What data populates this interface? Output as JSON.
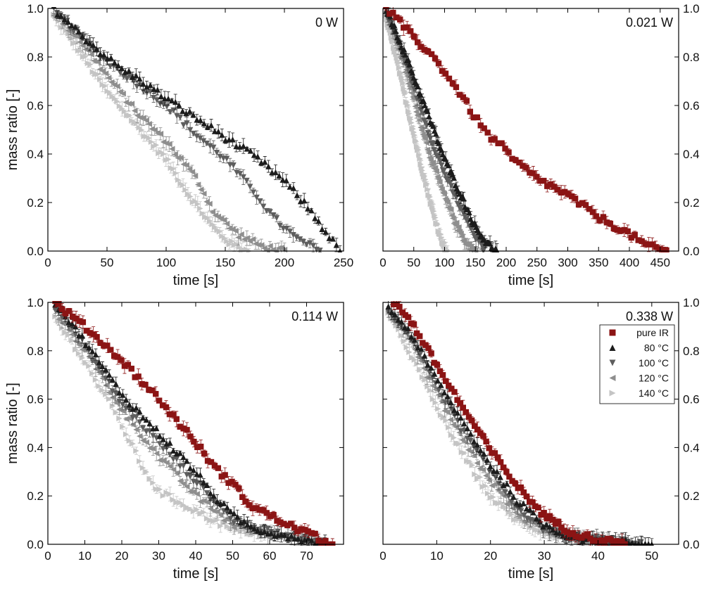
{
  "figure": {
    "colors": {
      "pure IR": "#8b1414",
      "80 °C": "#1c1c1c",
      "100 °C": "#5e5e5e",
      "120 °C": "#8e8e8e",
      "140 °C": "#c4c4c4"
    },
    "legend": [
      {
        "label": "pure IR",
        "marker": "square",
        "color": "#8b1414"
      },
      {
        "label": "80 °C",
        "marker": "triangle-up",
        "color": "#1c1c1c"
      },
      {
        "label": "100 °C",
        "marker": "triangle-down",
        "color": "#5e5e5e"
      },
      {
        "label": "120 °C",
        "marker": "triangle-left",
        "color": "#8e8e8e"
      },
      {
        "label": "140 °C",
        "marker": "triangle-right",
        "color": "#c4c4c4"
      }
    ],
    "legend_location": "top-right of bottom-right panel"
  },
  "chart_data": [
    {
      "type": "scatter",
      "panel_label": "0 W",
      "xlabel": "time [s]",
      "ylabel": "mass ratio [-]",
      "xlim": [
        0,
        250
      ],
      "ylim": [
        0,
        1
      ],
      "xticks": [
        0,
        50,
        100,
        150,
        200,
        250
      ],
      "yticks": [
        0.0,
        0.2,
        0.4,
        0.6,
        0.8,
        1.0
      ],
      "x_tick_labels": [
        "0",
        "50",
        "100",
        "150",
        "200",
        "250"
      ],
      "y_tick_labels": [
        "0.0",
        "0.2",
        "0.4",
        "0.6",
        "0.8",
        "1.0"
      ],
      "ytick_side": "left",
      "series": [
        {
          "name": "80 °C",
          "points": [
            [
              5,
              1.0
            ],
            [
              20,
              0.93
            ],
            [
              40,
              0.84
            ],
            [
              60,
              0.76
            ],
            [
              80,
              0.7
            ],
            [
              100,
              0.63
            ],
            [
              125,
              0.55
            ],
            [
              150,
              0.47
            ],
            [
              175,
              0.39
            ],
            [
              200,
              0.29
            ],
            [
              220,
              0.18
            ],
            [
              235,
              0.08
            ],
            [
              247,
              0.0
            ]
          ]
        },
        {
          "name": "100 °C",
          "points": [
            [
              5,
              0.99
            ],
            [
              25,
              0.9
            ],
            [
              50,
              0.78
            ],
            [
              75,
              0.69
            ],
            [
              100,
              0.6
            ],
            [
              125,
              0.48
            ],
            [
              150,
              0.38
            ],
            [
              175,
              0.24
            ],
            [
              190,
              0.14
            ],
            [
              210,
              0.05
            ],
            [
              230,
              0.0
            ]
          ]
        },
        {
          "name": "120 °C",
          "points": [
            [
              5,
              0.98
            ],
            [
              25,
              0.88
            ],
            [
              50,
              0.72
            ],
            [
              75,
              0.57
            ],
            [
              100,
              0.45
            ],
            [
              125,
              0.3
            ],
            [
              140,
              0.16
            ],
            [
              160,
              0.07
            ],
            [
              180,
              0.02
            ],
            [
              200,
              0.0
            ]
          ]
        },
        {
          "name": "140 °C",
          "points": [
            [
              5,
              0.97
            ],
            [
              25,
              0.84
            ],
            [
              50,
              0.66
            ],
            [
              75,
              0.52
            ],
            [
              100,
              0.38
            ],
            [
              120,
              0.23
            ],
            [
              140,
              0.1
            ],
            [
              155,
              0.03
            ],
            [
              170,
              0.0
            ]
          ]
        }
      ]
    },
    {
      "type": "scatter",
      "panel_label": "0.021 W",
      "xlabel": "time [s]",
      "ylabel": "",
      "xlim": [
        0,
        480
      ],
      "ylim": [
        0,
        1
      ],
      "xticks": [
        0,
        50,
        100,
        150,
        200,
        250,
        300,
        350,
        400,
        450
      ],
      "yticks": [
        0.0,
        0.2,
        0.4,
        0.6,
        0.8,
        1.0
      ],
      "x_tick_labels": [
        "0",
        "50",
        "100",
        "150",
        "200",
        "250",
        "300",
        "350",
        "400",
        "450"
      ],
      "y_tick_labels": [
        "0.0",
        "0.2",
        "0.4",
        "0.6",
        "0.8",
        "1.0"
      ],
      "ytick_side": "right",
      "series": [
        {
          "name": "pure IR",
          "points": [
            [
              5,
              1.0
            ],
            [
              25,
              0.95
            ],
            [
              50,
              0.88
            ],
            [
              75,
              0.82
            ],
            [
              100,
              0.74
            ],
            [
              125,
              0.65
            ],
            [
              150,
              0.55
            ],
            [
              170,
              0.48
            ],
            [
              190,
              0.44
            ],
            [
              210,
              0.38
            ],
            [
              250,
              0.3
            ],
            [
              300,
              0.23
            ],
            [
              350,
              0.14
            ],
            [
              400,
              0.07
            ],
            [
              430,
              0.02
            ],
            [
              460,
              0.0
            ]
          ]
        },
        {
          "name": "80 °C",
          "points": [
            [
              5,
              1.0
            ],
            [
              25,
              0.88
            ],
            [
              50,
              0.72
            ],
            [
              75,
              0.55
            ],
            [
              100,
              0.38
            ],
            [
              125,
              0.24
            ],
            [
              150,
              0.1
            ],
            [
              170,
              0.03
            ],
            [
              185,
              0.0
            ]
          ]
        },
        {
          "name": "100 °C",
          "points": [
            [
              5,
              0.99
            ],
            [
              25,
              0.86
            ],
            [
              50,
              0.68
            ],
            [
              75,
              0.48
            ],
            [
              100,
              0.32
            ],
            [
              125,
              0.18
            ],
            [
              150,
              0.06
            ],
            [
              165,
              0.0
            ]
          ]
        },
        {
          "name": "120 °C",
          "points": [
            [
              5,
              0.98
            ],
            [
              25,
              0.84
            ],
            [
              50,
              0.62
            ],
            [
              75,
              0.4
            ],
            [
              100,
              0.22
            ],
            [
              120,
              0.1
            ],
            [
              135,
              0.03
            ],
            [
              150,
              0.0
            ]
          ]
        },
        {
          "name": "140 °C",
          "points": [
            [
              5,
              0.96
            ],
            [
              20,
              0.82
            ],
            [
              40,
              0.6
            ],
            [
              60,
              0.38
            ],
            [
              80,
              0.18
            ],
            [
              95,
              0.05
            ],
            [
              105,
              0.0
            ]
          ]
        }
      ]
    },
    {
      "type": "scatter",
      "panel_label": "0.114 W",
      "xlabel": "time [s]",
      "ylabel": "mass ratio [-]",
      "xlim": [
        0,
        80
      ],
      "ylim": [
        0,
        1
      ],
      "xticks": [
        0,
        10,
        20,
        30,
        40,
        50,
        60,
        70
      ],
      "yticks": [
        0.0,
        0.2,
        0.4,
        0.6,
        0.8,
        1.0
      ],
      "x_tick_labels": [
        "0",
        "10",
        "20",
        "30",
        "40",
        "50",
        "60",
        "70"
      ],
      "y_tick_labels": [
        "0.0",
        "0.2",
        "0.4",
        "0.6",
        "0.8",
        "1.0"
      ],
      "ytick_side": "left",
      "series": [
        {
          "name": "pure IR",
          "points": [
            [
              2,
              1.0
            ],
            [
              10,
              0.9
            ],
            [
              20,
              0.76
            ],
            [
              30,
              0.6
            ],
            [
              40,
              0.42
            ],
            [
              45,
              0.32
            ],
            [
              50,
              0.25
            ],
            [
              55,
              0.16
            ],
            [
              60,
              0.12
            ],
            [
              65,
              0.08
            ],
            [
              70,
              0.05
            ],
            [
              75,
              0.01
            ],
            [
              77,
              0.0
            ]
          ]
        },
        {
          "name": "80 °C",
          "points": [
            [
              2,
              1.0
            ],
            [
              10,
              0.84
            ],
            [
              20,
              0.62
            ],
            [
              30,
              0.46
            ],
            [
              40,
              0.3
            ],
            [
              45,
              0.2
            ],
            [
              50,
              0.12
            ],
            [
              55,
              0.07
            ],
            [
              60,
              0.05
            ],
            [
              70,
              0.02
            ],
            [
              75,
              0.0
            ]
          ]
        },
        {
          "name": "100 °C",
          "points": [
            [
              2,
              0.98
            ],
            [
              10,
              0.82
            ],
            [
              20,
              0.58
            ],
            [
              30,
              0.42
            ],
            [
              40,
              0.26
            ],
            [
              45,
              0.18
            ],
            [
              50,
              0.1
            ],
            [
              60,
              0.05
            ],
            [
              70,
              0.02
            ],
            [
              75,
              0.0
            ]
          ]
        },
        {
          "name": "120 °C",
          "points": [
            [
              2,
              0.96
            ],
            [
              10,
              0.8
            ],
            [
              20,
              0.55
            ],
            [
              30,
              0.36
            ],
            [
              40,
              0.2
            ],
            [
              50,
              0.08
            ],
            [
              60,
              0.04
            ],
            [
              70,
              0.02
            ],
            [
              75,
              0.0
            ]
          ]
        },
        {
          "name": "140 °C",
          "points": [
            [
              2,
              0.94
            ],
            [
              10,
              0.76
            ],
            [
              20,
              0.5
            ],
            [
              25,
              0.34
            ],
            [
              30,
              0.22
            ],
            [
              40,
              0.14
            ],
            [
              50,
              0.06
            ],
            [
              60,
              0.04
            ],
            [
              70,
              0.03
            ],
            [
              75,
              0.0
            ]
          ]
        }
      ]
    },
    {
      "type": "scatter",
      "panel_label": "0.338 W",
      "xlabel": "time [s]",
      "ylabel": "",
      "xlim": [
        0,
        55
      ],
      "ylim": [
        0,
        1
      ],
      "xticks": [
        0,
        10,
        20,
        30,
        40,
        50
      ],
      "yticks": [
        0.0,
        0.2,
        0.4,
        0.6,
        0.8,
        1.0
      ],
      "x_tick_labels": [
        "0",
        "10",
        "20",
        "30",
        "40",
        "50"
      ],
      "y_tick_labels": [
        "0.0",
        "0.2",
        "0.4",
        "0.6",
        "0.8",
        "1.0"
      ],
      "ytick_side": "right",
      "series": [
        {
          "name": "pure IR",
          "points": [
            [
              2,
              1.0
            ],
            [
              5,
              0.93
            ],
            [
              10,
              0.74
            ],
            [
              15,
              0.56
            ],
            [
              20,
              0.39
            ],
            [
              25,
              0.24
            ],
            [
              30,
              0.12
            ],
            [
              35,
              0.05
            ],
            [
              40,
              0.02
            ],
            [
              45,
              0.0
            ]
          ]
        },
        {
          "name": "80 °C",
          "points": [
            [
              1,
              0.98
            ],
            [
              5,
              0.88
            ],
            [
              10,
              0.68
            ],
            [
              15,
              0.5
            ],
            [
              20,
              0.33
            ],
            [
              25,
              0.18
            ],
            [
              30,
              0.08
            ],
            [
              35,
              0.03
            ],
            [
              40,
              0.02
            ],
            [
              50,
              0.0
            ]
          ]
        },
        {
          "name": "100 °C",
          "points": [
            [
              1,
              0.97
            ],
            [
              5,
              0.86
            ],
            [
              10,
              0.66
            ],
            [
              15,
              0.46
            ],
            [
              20,
              0.3
            ],
            [
              25,
              0.15
            ],
            [
              30,
              0.06
            ],
            [
              35,
              0.03
            ],
            [
              40,
              0.02
            ],
            [
              48,
              0.0
            ]
          ]
        },
        {
          "name": "120 °C",
          "points": [
            [
              1,
              0.96
            ],
            [
              5,
              0.84
            ],
            [
              10,
              0.62
            ],
            [
              15,
              0.42
            ],
            [
              20,
              0.26
            ],
            [
              25,
              0.12
            ],
            [
              30,
              0.06
            ],
            [
              35,
              0.03
            ],
            [
              40,
              0.01
            ],
            [
              45,
              0.0
            ]
          ]
        },
        {
          "name": "140 °C",
          "points": [
            [
              1,
              0.95
            ],
            [
              5,
              0.8
            ],
            [
              10,
              0.57
            ],
            [
              15,
              0.37
            ],
            [
              20,
              0.2
            ],
            [
              25,
              0.1
            ],
            [
              30,
              0.05
            ],
            [
              35,
              0.02
            ],
            [
              40,
              0.0
            ]
          ]
        }
      ]
    }
  ]
}
